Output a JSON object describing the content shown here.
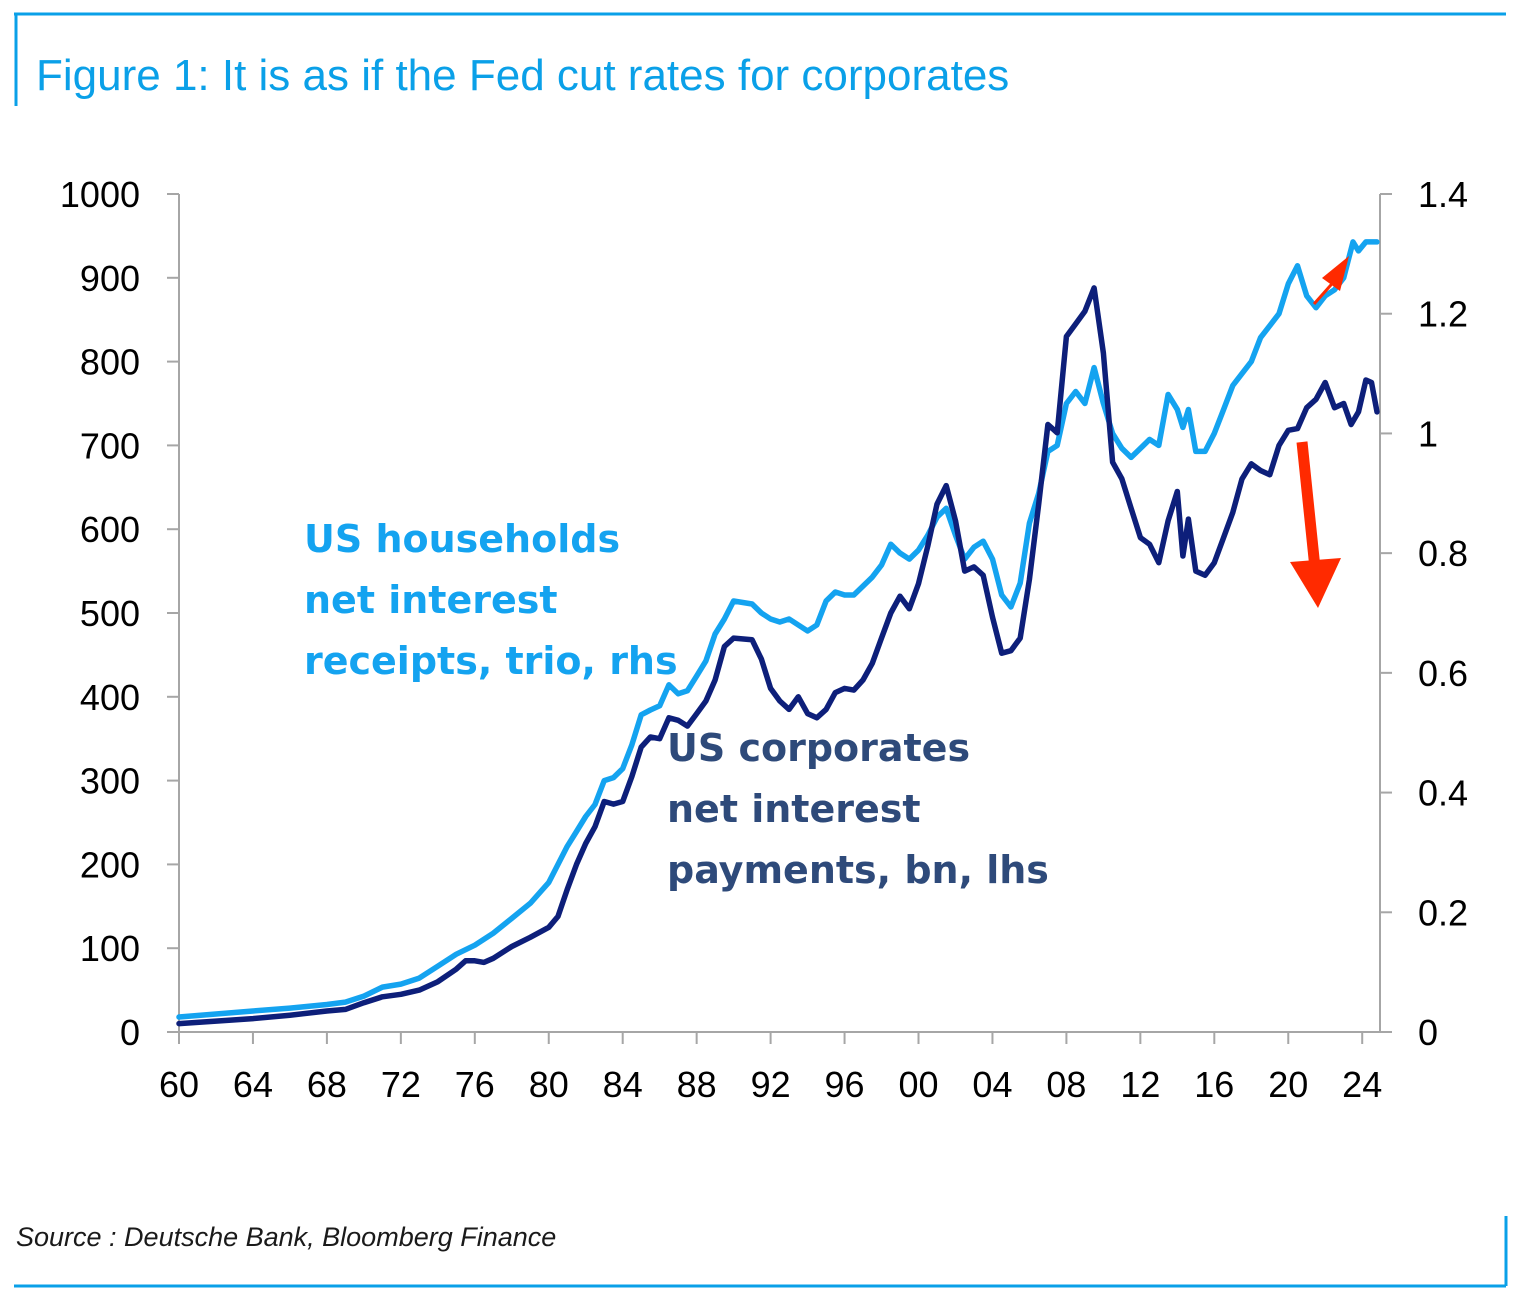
{
  "title": "Figure 1: It is as if the Fed cut rates for corporates",
  "source": "Source : Deutsche Bank, Bloomberg Finance",
  "colors": {
    "frame": "#0aa0e8",
    "title": "#0aa0e8",
    "households": "#14a3f0",
    "corporates": "#0d1f7a",
    "corporates_label": "#2e4a7a",
    "arrow": "#ff2a00",
    "axis": "#a6a6a6"
  },
  "chart_data": {
    "type": "line",
    "x_tick_labels": [
      "60",
      "64",
      "68",
      "72",
      "76",
      "80",
      "84",
      "88",
      "92",
      "96",
      "00",
      "04",
      "08",
      "12",
      "16",
      "20",
      "24"
    ],
    "xlim": [
      1960,
      2024.8
    ],
    "y_left": {
      "ylim": [
        0,
        1000
      ],
      "ticks": [
        "0",
        "100",
        "200",
        "300",
        "400",
        "500",
        "600",
        "700",
        "800",
        "900",
        "1000"
      ]
    },
    "y_right": {
      "ylim": [
        0,
        1.4
      ],
      "ticks": [
        "0",
        "0.2",
        "0.4",
        "0.6",
        "0.8",
        "1",
        "1.2",
        "1.4"
      ]
    },
    "annotations": [
      {
        "id": "households",
        "lines": [
          "US households",
          "net interest",
          "receipts, trio, rhs"
        ]
      },
      {
        "id": "corporates",
        "lines": [
          "US corporates",
          "net interest",
          "payments, bn, lhs"
        ]
      }
    ],
    "series": [
      {
        "id": "corporates",
        "axis": "left",
        "points": [
          [
            1960,
            10
          ],
          [
            1962,
            13
          ],
          [
            1964,
            16
          ],
          [
            1966,
            20
          ],
          [
            1968,
            25
          ],
          [
            1969,
            27
          ],
          [
            1970,
            35
          ],
          [
            1971,
            42
          ],
          [
            1972,
            45
          ],
          [
            1973,
            50
          ],
          [
            1974,
            60
          ],
          [
            1975,
            75
          ],
          [
            1975.5,
            85
          ],
          [
            1976,
            85
          ],
          [
            1976.5,
            83
          ],
          [
            1977,
            88
          ],
          [
            1978,
            102
          ],
          [
            1979,
            113
          ],
          [
            1980,
            125
          ],
          [
            1980.5,
            138
          ],
          [
            1981,
            170
          ],
          [
            1981.5,
            200
          ],
          [
            1982,
            225
          ],
          [
            1982.5,
            245
          ],
          [
            1983,
            275
          ],
          [
            1983.5,
            272
          ],
          [
            1984,
            275
          ],
          [
            1984.5,
            305
          ],
          [
            1985,
            340
          ],
          [
            1985.5,
            352
          ],
          [
            1986,
            350
          ],
          [
            1986.5,
            375
          ],
          [
            1987,
            372
          ],
          [
            1987.5,
            365
          ],
          [
            1988,
            380
          ],
          [
            1988.5,
            395
          ],
          [
            1989,
            420
          ],
          [
            1989.5,
            460
          ],
          [
            1990,
            470
          ],
          [
            1991,
            468
          ],
          [
            1991.5,
            445
          ],
          [
            1992,
            410
          ],
          [
            1992.5,
            395
          ],
          [
            1993,
            385
          ],
          [
            1993.5,
            400
          ],
          [
            1994,
            380
          ],
          [
            1994.5,
            375
          ],
          [
            1995,
            385
          ],
          [
            1995.5,
            405
          ],
          [
            1996,
            410
          ],
          [
            1996.5,
            408
          ],
          [
            1997,
            420
          ],
          [
            1997.5,
            440
          ],
          [
            1998,
            470
          ],
          [
            1998.5,
            500
          ],
          [
            1999,
            520
          ],
          [
            1999.5,
            505
          ],
          [
            2000,
            535
          ],
          [
            2000.5,
            580
          ],
          [
            2001,
            630
          ],
          [
            2001.5,
            652
          ],
          [
            2002,
            610
          ],
          [
            2002.5,
            550
          ],
          [
            2003,
            555
          ],
          [
            2003.5,
            545
          ],
          [
            2004,
            495
          ],
          [
            2004.5,
            452
          ],
          [
            2005,
            455
          ],
          [
            2005.5,
            470
          ],
          [
            2006,
            540
          ],
          [
            2006.5,
            630
          ],
          [
            2007,
            725
          ],
          [
            2007.5,
            715
          ],
          [
            2008,
            830
          ],
          [
            2008.5,
            845
          ],
          [
            2009,
            860
          ],
          [
            2009.5,
            888
          ],
          [
            2010,
            810
          ],
          [
            2010.5,
            680
          ],
          [
            2011,
            660
          ],
          [
            2011.5,
            625
          ],
          [
            2012,
            590
          ],
          [
            2012.5,
            582
          ],
          [
            2013,
            560
          ],
          [
            2013.5,
            610
          ],
          [
            2014,
            645
          ],
          [
            2014.3,
            568
          ],
          [
            2014.6,
            612
          ],
          [
            2015,
            550
          ],
          [
            2015.5,
            545
          ],
          [
            2016,
            560
          ],
          [
            2016.5,
            590
          ],
          [
            2017,
            620
          ],
          [
            2017.5,
            660
          ],
          [
            2018,
            678
          ],
          [
            2018.5,
            670
          ],
          [
            2019,
            665
          ],
          [
            2019.5,
            700
          ],
          [
            2020,
            718
          ],
          [
            2020.5,
            720
          ],
          [
            2021,
            745
          ],
          [
            2021.5,
            755
          ],
          [
            2022,
            775
          ],
          [
            2022.5,
            745
          ],
          [
            2023,
            750
          ],
          [
            2023.4,
            725
          ],
          [
            2023.8,
            740
          ],
          [
            2024.2,
            778
          ],
          [
            2024.5,
            775
          ],
          [
            2024.8,
            740
          ]
        ]
      },
      {
        "id": "households",
        "axis": "right",
        "points": [
          [
            1960,
            0.025
          ],
          [
            1962,
            0.03
          ],
          [
            1964,
            0.035
          ],
          [
            1966,
            0.04
          ],
          [
            1968,
            0.046
          ],
          [
            1969,
            0.05
          ],
          [
            1970,
            0.06
          ],
          [
            1971,
            0.075
          ],
          [
            1972,
            0.08
          ],
          [
            1973,
            0.09
          ],
          [
            1974,
            0.11
          ],
          [
            1975,
            0.13
          ],
          [
            1976,
            0.145
          ],
          [
            1977,
            0.165
          ],
          [
            1978,
            0.19
          ],
          [
            1979,
            0.215
          ],
          [
            1980,
            0.25
          ],
          [
            1980.5,
            0.28
          ],
          [
            1981,
            0.31
          ],
          [
            1981.5,
            0.335
          ],
          [
            1982,
            0.36
          ],
          [
            1982.5,
            0.38
          ],
          [
            1983,
            0.42
          ],
          [
            1983.5,
            0.425
          ],
          [
            1984,
            0.44
          ],
          [
            1984.5,
            0.48
          ],
          [
            1985,
            0.53
          ],
          [
            1985.5,
            0.538
          ],
          [
            1986,
            0.545
          ],
          [
            1986.5,
            0.58
          ],
          [
            1987,
            0.565
          ],
          [
            1987.5,
            0.57
          ],
          [
            1988,
            0.595
          ],
          [
            1988.5,
            0.62
          ],
          [
            1989,
            0.665
          ],
          [
            1989.5,
            0.69
          ],
          [
            1990,
            0.72
          ],
          [
            1991,
            0.715
          ],
          [
            1991.5,
            0.7
          ],
          [
            1992,
            0.69
          ],
          [
            1992.5,
            0.685
          ],
          [
            1993,
            0.69
          ],
          [
            1994,
            0.67
          ],
          [
            1994.5,
            0.68
          ],
          [
            1995,
            0.72
          ],
          [
            1995.5,
            0.735
          ],
          [
            1996,
            0.73
          ],
          [
            1996.5,
            0.73
          ],
          [
            1997,
            0.745
          ],
          [
            1997.5,
            0.76
          ],
          [
            1998,
            0.78
          ],
          [
            1998.5,
            0.815
          ],
          [
            1999,
            0.8
          ],
          [
            1999.5,
            0.79
          ],
          [
            2000,
            0.805
          ],
          [
            2000.5,
            0.83
          ],
          [
            2001,
            0.86
          ],
          [
            2001.5,
            0.875
          ],
          [
            2002,
            0.83
          ],
          [
            2002.5,
            0.79
          ],
          [
            2003,
            0.81
          ],
          [
            2003.5,
            0.82
          ],
          [
            2004,
            0.79
          ],
          [
            2004.5,
            0.73
          ],
          [
            2005,
            0.71
          ],
          [
            2005.5,
            0.75
          ],
          [
            2006,
            0.85
          ],
          [
            2006.5,
            0.9
          ],
          [
            2007,
            0.97
          ],
          [
            2007.5,
            0.98
          ],
          [
            2008,
            1.05
          ],
          [
            2008.5,
            1.07
          ],
          [
            2009,
            1.05
          ],
          [
            2009.5,
            1.11
          ],
          [
            2010,
            1.05
          ],
          [
            2010.5,
            1.0
          ],
          [
            2011,
            0.975
          ],
          [
            2011.5,
            0.96
          ],
          [
            2012,
            0.975
          ],
          [
            2012.5,
            0.99
          ],
          [
            2013,
            0.98
          ],
          [
            2013.5,
            1.065
          ],
          [
            2014,
            1.04
          ],
          [
            2014.3,
            1.01
          ],
          [
            2014.6,
            1.04
          ],
          [
            2015,
            0.97
          ],
          [
            2015.5,
            0.97
          ],
          [
            2016,
            1.0
          ],
          [
            2016.5,
            1.04
          ],
          [
            2017,
            1.08
          ],
          [
            2017.5,
            1.1
          ],
          [
            2018,
            1.12
          ],
          [
            2018.5,
            1.16
          ],
          [
            2019,
            1.18
          ],
          [
            2019.5,
            1.2
          ],
          [
            2020,
            1.25
          ],
          [
            2020.5,
            1.28
          ],
          [
            2021,
            1.23
          ],
          [
            2021.5,
            1.21
          ],
          [
            2022,
            1.23
          ],
          [
            2022.5,
            1.24
          ],
          [
            2023,
            1.26
          ],
          [
            2023.5,
            1.32
          ],
          [
            2023.8,
            1.305
          ],
          [
            2024.2,
            1.32
          ],
          [
            2024.8,
            1.32
          ]
        ]
      }
    ]
  }
}
